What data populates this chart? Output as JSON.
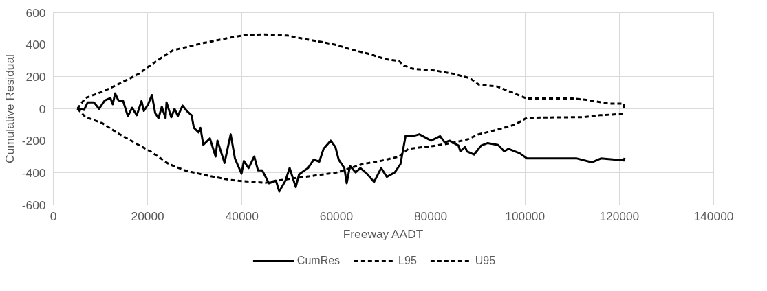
{
  "chart_data": {
    "type": "line",
    "xlabel": "Freeway AADT",
    "ylabel": "Cumulative Residual",
    "xlim": [
      0,
      140000
    ],
    "xticks": [
      0,
      20000,
      40000,
      60000,
      80000,
      100000,
      120000,
      140000
    ],
    "ylim": [
      -600,
      600
    ],
    "yticks": [
      -600,
      -400,
      -200,
      0,
      200,
      400,
      600
    ],
    "grid": true,
    "legend": "bottom",
    "marker": "none",
    "series": [
      {
        "name": "CumRes",
        "color": "#000000",
        "line_style": "solid",
        "x": [
          5100,
          6500,
          7300,
          8600,
          9700,
          10900,
          12100,
          12600,
          13100,
          13800,
          14800,
          15800,
          16700,
          17700,
          18700,
          19200,
          20100,
          20900,
          21600,
          22300,
          23000,
          23800,
          24000,
          25000,
          25700,
          26400,
          27400,
          28300,
          29300,
          29800,
          30800,
          31200,
          31800,
          33200,
          34400,
          34800,
          36300,
          37600,
          38500,
          39900,
          40400,
          41400,
          42600,
          43400,
          44300,
          45700,
          47200,
          47900,
          49200,
          50100,
          51400,
          52100,
          54000,
          55200,
          56400,
          57300,
          58800,
          59800,
          60500,
          61700,
          62200,
          62900,
          64100,
          65100,
          66600,
          68000,
          69500,
          70700,
          72400,
          73600,
          74700,
          76200,
          77600,
          80100,
          82000,
          83000,
          84000,
          85900,
          86300,
          87300,
          87700,
          89200,
          90700,
          92100,
          94300,
          95600,
          96500,
          98900,
          100400,
          111000,
          114200,
          116100,
          121000,
          121100
        ],
        "values": [
          3,
          -7,
          40,
          40,
          0,
          52,
          67,
          28,
          96,
          52,
          48,
          -46,
          6,
          -40,
          48,
          -13,
          28,
          86,
          -27,
          -59,
          13,
          -59,
          40,
          -53,
          0,
          -46,
          20,
          -13,
          -40,
          -119,
          -147,
          -119,
          -225,
          -185,
          -298,
          -199,
          -338,
          -159,
          -310,
          -405,
          -326,
          -370,
          -298,
          -385,
          -385,
          -465,
          -449,
          -517,
          -449,
          -370,
          -489,
          -409,
          -370,
          -318,
          -330,
          -250,
          -199,
          -238,
          -318,
          -370,
          -465,
          -357,
          -397,
          -370,
          -409,
          -457,
          -370,
          -425,
          -397,
          -345,
          -167,
          -171,
          -159,
          -199,
          -171,
          -211,
          -199,
          -230,
          -266,
          -238,
          -266,
          -286,
          -230,
          -214,
          -226,
          -266,
          -250,
          -278,
          -310,
          -310,
          -334,
          -310,
          -322,
          -306
        ]
      },
      {
        "name": "L95",
        "color": "#000000",
        "line_style": "dashed",
        "x": [
          5100,
          6800,
          10450,
          13350,
          18100,
          20600,
          24500,
          27900,
          32700,
          37600,
          42400,
          45000,
          47200,
          55400,
          60200,
          65600,
          69500,
          73300,
          75300,
          81100,
          84900,
          87800,
          90200,
          94100,
          97900,
          100400,
          112400,
          115900,
          121100
        ],
        "values": [
          0,
          -51,
          -91,
          -147,
          -226,
          -266,
          -345,
          -385,
          -417,
          -445,
          -457,
          -462,
          -449,
          -417,
          -397,
          -345,
          -325,
          -298,
          -250,
          -230,
          -211,
          -191,
          -159,
          -131,
          -99,
          -56,
          -52,
          -40,
          -32
        ]
      },
      {
        "name": "U95",
        "color": "#000000",
        "line_style": "dashed",
        "x": [
          5100,
          6800,
          10450,
          13350,
          18100,
          20300,
          23500,
          25400,
          28900,
          31800,
          37600,
          40900,
          44800,
          49600,
          53000,
          56900,
          60200,
          63100,
          66600,
          70400,
          73300,
          74300,
          76200,
          81100,
          84900,
          88300,
          90200,
          94100,
          97500,
          100400,
          110100,
          113000,
          117800,
          121000,
          121000
        ],
        "values": [
          0,
          67,
          107,
          147,
          218,
          266,
          330,
          365,
          390,
          410,
          445,
          461,
          464,
          457,
          437,
          417,
          397,
          370,
          345,
          310,
          298,
          270,
          250,
          238,
          218,
          191,
          151,
          139,
          99,
          64,
          64,
          56,
          32,
          32,
          5
        ]
      }
    ]
  }
}
